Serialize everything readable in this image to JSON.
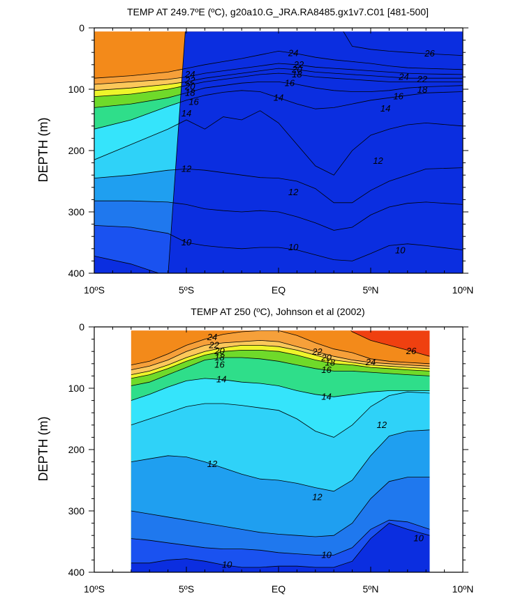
{
  "colors": {
    "levels": [
      {
        "min": 8.0,
        "max": 9.5,
        "color": "#0b2ee0"
      },
      {
        "min": 9.5,
        "max": 10.0,
        "color": "#1a52f0"
      },
      {
        "min": 10.0,
        "max": 11.0,
        "color": "#1f78ee"
      },
      {
        "min": 11.0,
        "max": 11.6,
        "color": "#1f9ff0"
      },
      {
        "min": 11.6,
        "max": 12.4,
        "color": "#27b9f4"
      },
      {
        "min": 12.4,
        "max": 13.0,
        "color": "#2fd2f8"
      },
      {
        "min": 13.0,
        "max": 14.0,
        "color": "#35e4fb"
      },
      {
        "min": 14.0,
        "max": 15.0,
        "color": "#4cf0f0"
      },
      {
        "min": 15.0,
        "max": 16.0,
        "color": "#2fde8a"
      },
      {
        "min": 16.0,
        "max": 17.0,
        "color": "#1bc94a"
      },
      {
        "min": 17.0,
        "max": 18.0,
        "color": "#6fda2a"
      },
      {
        "min": 18.0,
        "max": 19.0,
        "color": "#b7ee2a"
      },
      {
        "min": 19.0,
        "max": 20.0,
        "color": "#eef52a"
      },
      {
        "min": 20.0,
        "max": 21.0,
        "color": "#fde86a"
      },
      {
        "min": 21.0,
        "max": 22.0,
        "color": "#fcc85a"
      },
      {
        "min": 22.0,
        "max": 23.0,
        "color": "#f9b04a"
      },
      {
        "min": 23.0,
        "max": 25.0,
        "color": "#f6a03a"
      },
      {
        "min": 25.0,
        "max": 26.5,
        "color": "#f38a1a"
      },
      {
        "min": 26.5,
        "max": 30.0,
        "color": "#ef4010"
      }
    ]
  },
  "chart_data": [
    {
      "type": "contour",
      "title": "TEMP AT 249.7ºE (ºC), g20a10.G_JRA.RA8485.gx1v7.C01 [481-500]",
      "ylabel": "DEPTH (m)",
      "xlabel": "",
      "xlim": [
        -10,
        10
      ],
      "ylim": [
        400,
        0
      ],
      "y_inverted": true,
      "x_ticks": [
        {
          "value": -10,
          "label": "10ºS"
        },
        {
          "value": -5,
          "label": "5ºS"
        },
        {
          "value": 0,
          "label": "EQ"
        },
        {
          "value": 5,
          "label": "5ºN"
        },
        {
          "value": 10,
          "label": "10ºN"
        }
      ],
      "y_ticks": [
        {
          "value": 0,
          "label": "0"
        },
        {
          "value": 100,
          "label": "100"
        },
        {
          "value": 200,
          "label": "200"
        },
        {
          "value": 300,
          "label": "300"
        },
        {
          "value": 400,
          "label": "400"
        }
      ],
      "data_x_range": [
        -10,
        10
      ],
      "x": [
        -10,
        -8,
        -6,
        -5,
        -4,
        -3,
        -2,
        -1,
        0,
        1,
        2,
        3,
        4,
        5,
        6,
        7,
        8,
        10
      ],
      "isotherms": [
        {
          "t": 26,
          "labeled": true,
          "label_x": 8.2,
          "d": [
            null,
            null,
            null,
            null,
            null,
            null,
            null,
            null,
            null,
            null,
            null,
            null,
            30,
            35,
            38,
            40,
            42,
            45
          ]
        },
        {
          "t": 24,
          "labeled": true,
          "label_x": 0.8,
          "d": [
            82,
            78,
            72,
            66,
            60,
            55,
            50,
            44,
            38,
            42,
            48,
            52,
            55,
            58,
            62,
            65,
            66,
            68
          ]
        },
        {
          "t": 22,
          "labeled": true,
          "label_x": 1.1,
          "d": [
            92,
            88,
            84,
            80,
            74,
            70,
            66,
            62,
            58,
            60,
            64,
            66,
            68,
            70,
            72,
            74,
            75,
            76
          ]
        },
        {
          "t": 20,
          "labeled": true,
          "label_x": 1.0,
          "d": [
            102,
            98,
            92,
            88,
            82,
            78,
            74,
            70,
            66,
            68,
            72,
            74,
            76,
            78,
            80,
            82,
            82,
            82
          ]
        },
        {
          "t": 18,
          "labeled": true,
          "label_x": 1.0,
          "d": [
            112,
            108,
            100,
            94,
            88,
            84,
            80,
            76,
            74,
            76,
            80,
            82,
            84,
            86,
            88,
            88,
            88,
            88
          ]
        },
        {
          "t": 16,
          "labeled": true,
          "label_x": 0.6,
          "d": [
            130,
            124,
            114,
            106,
            98,
            94,
            90,
            88,
            88,
            92,
            98,
            102,
            104,
            104,
            102,
            98,
            96,
            94
          ]
        },
        {
          "t": 14,
          "labeled": true,
          "label_x": 0.0,
          "d": [
            165,
            150,
            128,
            118,
            110,
            105,
            102,
            104,
            114,
            124,
            132,
            130,
            124,
            118,
            114,
            110,
            106,
            104
          ]
        },
        {
          "t": 13,
          "labeled": false,
          "label_x": 0.0,
          "d": [
            215,
            190,
            165,
            150,
            165,
            145,
            150,
            135,
            155,
            190,
            225,
            240,
            200,
            175,
            165,
            158,
            155,
            160
          ]
        },
        {
          "t": 12,
          "labeled": true,
          "label_x": -5.0,
          "d": [
            245,
            240,
            232,
            230,
            232,
            236,
            240,
            244,
            245,
            250,
            262,
            285,
            285,
            265,
            250,
            240,
            230,
            228
          ]
        },
        {
          "t": 11,
          "labeled": false,
          "label_x": 0.0,
          "d": [
            282,
            282,
            284,
            288,
            295,
            298,
            300,
            298,
            300,
            308,
            318,
            330,
            325,
            305,
            292,
            286,
            284,
            288
          ]
        },
        {
          "t": 10,
          "labeled": true,
          "label_x": -5.0,
          "d": [
            322,
            325,
            335,
            350,
            355,
            358,
            360,
            358,
            358,
            362,
            370,
            378,
            380,
            368,
            355,
            352,
            355,
            362
          ]
        },
        {
          "t": 9,
          "labeled": false,
          "label_x": 0.0,
          "d": [
            372,
            385,
            405,
            null,
            null,
            null,
            null,
            null,
            null,
            null,
            null,
            null,
            null,
            null,
            null,
            null,
            null,
            null
          ]
        }
      ],
      "extra_labels": [
        {
          "t": 12,
          "x": 5.4,
          "y": 217
        },
        {
          "t": 12,
          "x": 0.8,
          "y": 268
        },
        {
          "t": 10,
          "x": 0.8,
          "y": 358
        },
        {
          "t": 10,
          "x": 6.6,
          "y": 363
        },
        {
          "t": 14,
          "x": 5.8,
          "y": 132
        },
        {
          "t": 16,
          "x": 6.5,
          "y": 112
        },
        {
          "t": 24,
          "x": 6.8,
          "y": 80
        },
        {
          "t": 22,
          "x": 7.8,
          "y": 84
        },
        {
          "t": 18,
          "x": 7.8,
          "y": 101
        },
        {
          "t": 24,
          "x": -4.8,
          "y": 76
        },
        {
          "t": 22,
          "x": -4.8,
          "y": 86
        },
        {
          "t": 20,
          "x": -4.8,
          "y": 96
        },
        {
          "t": 18,
          "x": -4.8,
          "y": 106
        },
        {
          "t": 16,
          "x": -4.6,
          "y": 121
        },
        {
          "t": 14,
          "x": -5.0,
          "y": 140
        }
      ]
    },
    {
      "type": "contour",
      "title": "TEMP AT 250 (ºC), Johnson et al (2002)",
      "ylabel": "DEPTH (m)",
      "xlabel": "",
      "xlim": [
        -10,
        10
      ],
      "ylim": [
        400,
        0
      ],
      "y_inverted": true,
      "x_ticks": [
        {
          "value": -10,
          "label": "10ºS"
        },
        {
          "value": -5,
          "label": "5ºS"
        },
        {
          "value": 0,
          "label": "EQ"
        },
        {
          "value": 5,
          "label": "5ºN"
        },
        {
          "value": 10,
          "label": "10ºN"
        }
      ],
      "y_ticks": [
        {
          "value": 0,
          "label": "0"
        },
        {
          "value": 100,
          "label": "100"
        },
        {
          "value": 200,
          "label": "200"
        },
        {
          "value": 300,
          "label": "300"
        },
        {
          "value": 400,
          "label": "400"
        }
      ],
      "data_x_range": [
        -8,
        8.2
      ],
      "x": [
        -8,
        -7,
        -6,
        -5,
        -4,
        -3,
        -2,
        -1,
        0,
        1,
        2,
        3,
        4,
        5,
        6,
        7,
        8.2
      ],
      "isotherms": [
        {
          "t": 26,
          "labeled": true,
          "label_x": 7.2,
          "d": [
            null,
            null,
            null,
            null,
            null,
            null,
            null,
            null,
            null,
            null,
            null,
            null,
            8,
            22,
            30,
            38,
            48
          ]
        },
        {
          "t": 24,
          "labeled": true,
          "label_x": -3.6,
          "d": [
            62,
            56,
            44,
            30,
            20,
            12,
            8,
            6,
            6,
            14,
            26,
            36,
            42,
            52,
            56,
            58,
            60
          ]
        },
        {
          "t": 22,
          "labeled": true,
          "label_x": 2.1,
          "d": [
            70,
            64,
            54,
            40,
            30,
            26,
            24,
            22,
            24,
            32,
            40,
            48,
            54,
            58,
            60,
            62,
            64
          ]
        },
        {
          "t": 20,
          "labeled": true,
          "label_x": 2.6,
          "d": [
            78,
            72,
            62,
            50,
            40,
            34,
            30,
            30,
            32,
            38,
            46,
            54,
            58,
            62,
            64,
            66,
            68
          ]
        },
        {
          "t": 18,
          "labeled": true,
          "label_x": 2.8,
          "d": [
            84,
            78,
            68,
            56,
            46,
            40,
            38,
            38,
            40,
            46,
            54,
            60,
            62,
            66,
            68,
            70,
            72
          ]
        },
        {
          "t": 16,
          "labeled": true,
          "label_x": 2.6,
          "d": [
            96,
            90,
            78,
            66,
            54,
            50,
            50,
            52,
            56,
            62,
            68,
            72,
            72,
            74,
            76,
            78,
            80
          ]
        },
        {
          "t": 14,
          "labeled": true,
          "label_x": -3.1,
          "d": [
            120,
            110,
            98,
            88,
            84,
            86,
            90,
            92,
            96,
            104,
            110,
            114,
            110,
            106,
            104,
            104,
            104
          ]
        },
        {
          "t": 13,
          "labeled": false,
          "label_x": 0.0,
          "d": [
            160,
            150,
            140,
            130,
            125,
            125,
            128,
            132,
            136,
            150,
            170,
            180,
            160,
            130,
            112,
            106,
            108
          ]
        },
        {
          "t": 12,
          "labeled": true,
          "label_x": -3.6,
          "d": [
            220,
            215,
            210,
            212,
            220,
            230,
            240,
            248,
            250,
            255,
            262,
            268,
            250,
            210,
            178,
            170,
            168
          ]
        },
        {
          "t": 11,
          "labeled": false,
          "label_x": 0.0,
          "d": [
            300,
            305,
            310,
            315,
            320,
            325,
            330,
            335,
            338,
            340,
            342,
            340,
            320,
            280,
            252,
            245,
            245
          ]
        },
        {
          "t": 10,
          "labeled": true,
          "label_x": 2.6,
          "d": [
            345,
            348,
            352,
            356,
            360,
            362,
            362,
            364,
            368,
            370,
            372,
            372,
            360,
            330,
            315,
            318,
            330
          ]
        },
        {
          "t": 9.5,
          "labeled": false,
          "label_x": 0.0,
          "d": [
            385,
            385,
            380,
            378,
            382,
            388,
            392,
            392,
            390,
            390,
            392,
            392,
            382,
            345,
            320,
            330,
            340
          ]
        }
      ],
      "extra_labels": [
        {
          "t": 12,
          "x": 5.6,
          "y": 160
        },
        {
          "t": 12,
          "x": 2.1,
          "y": 278
        },
        {
          "t": 10,
          "x": -2.8,
          "y": 388
        },
        {
          "t": 10,
          "x": 7.6,
          "y": 345
        },
        {
          "t": 24,
          "x": 5.0,
          "y": 58
        },
        {
          "t": 22,
          "x": -3.5,
          "y": 30
        },
        {
          "t": 20,
          "x": -3.2,
          "y": 40
        },
        {
          "t": 18,
          "x": -3.2,
          "y": 50
        },
        {
          "t": 16,
          "x": -3.2,
          "y": 62
        },
        {
          "t": 14,
          "x": 2.6,
          "y": 114
        }
      ]
    }
  ]
}
